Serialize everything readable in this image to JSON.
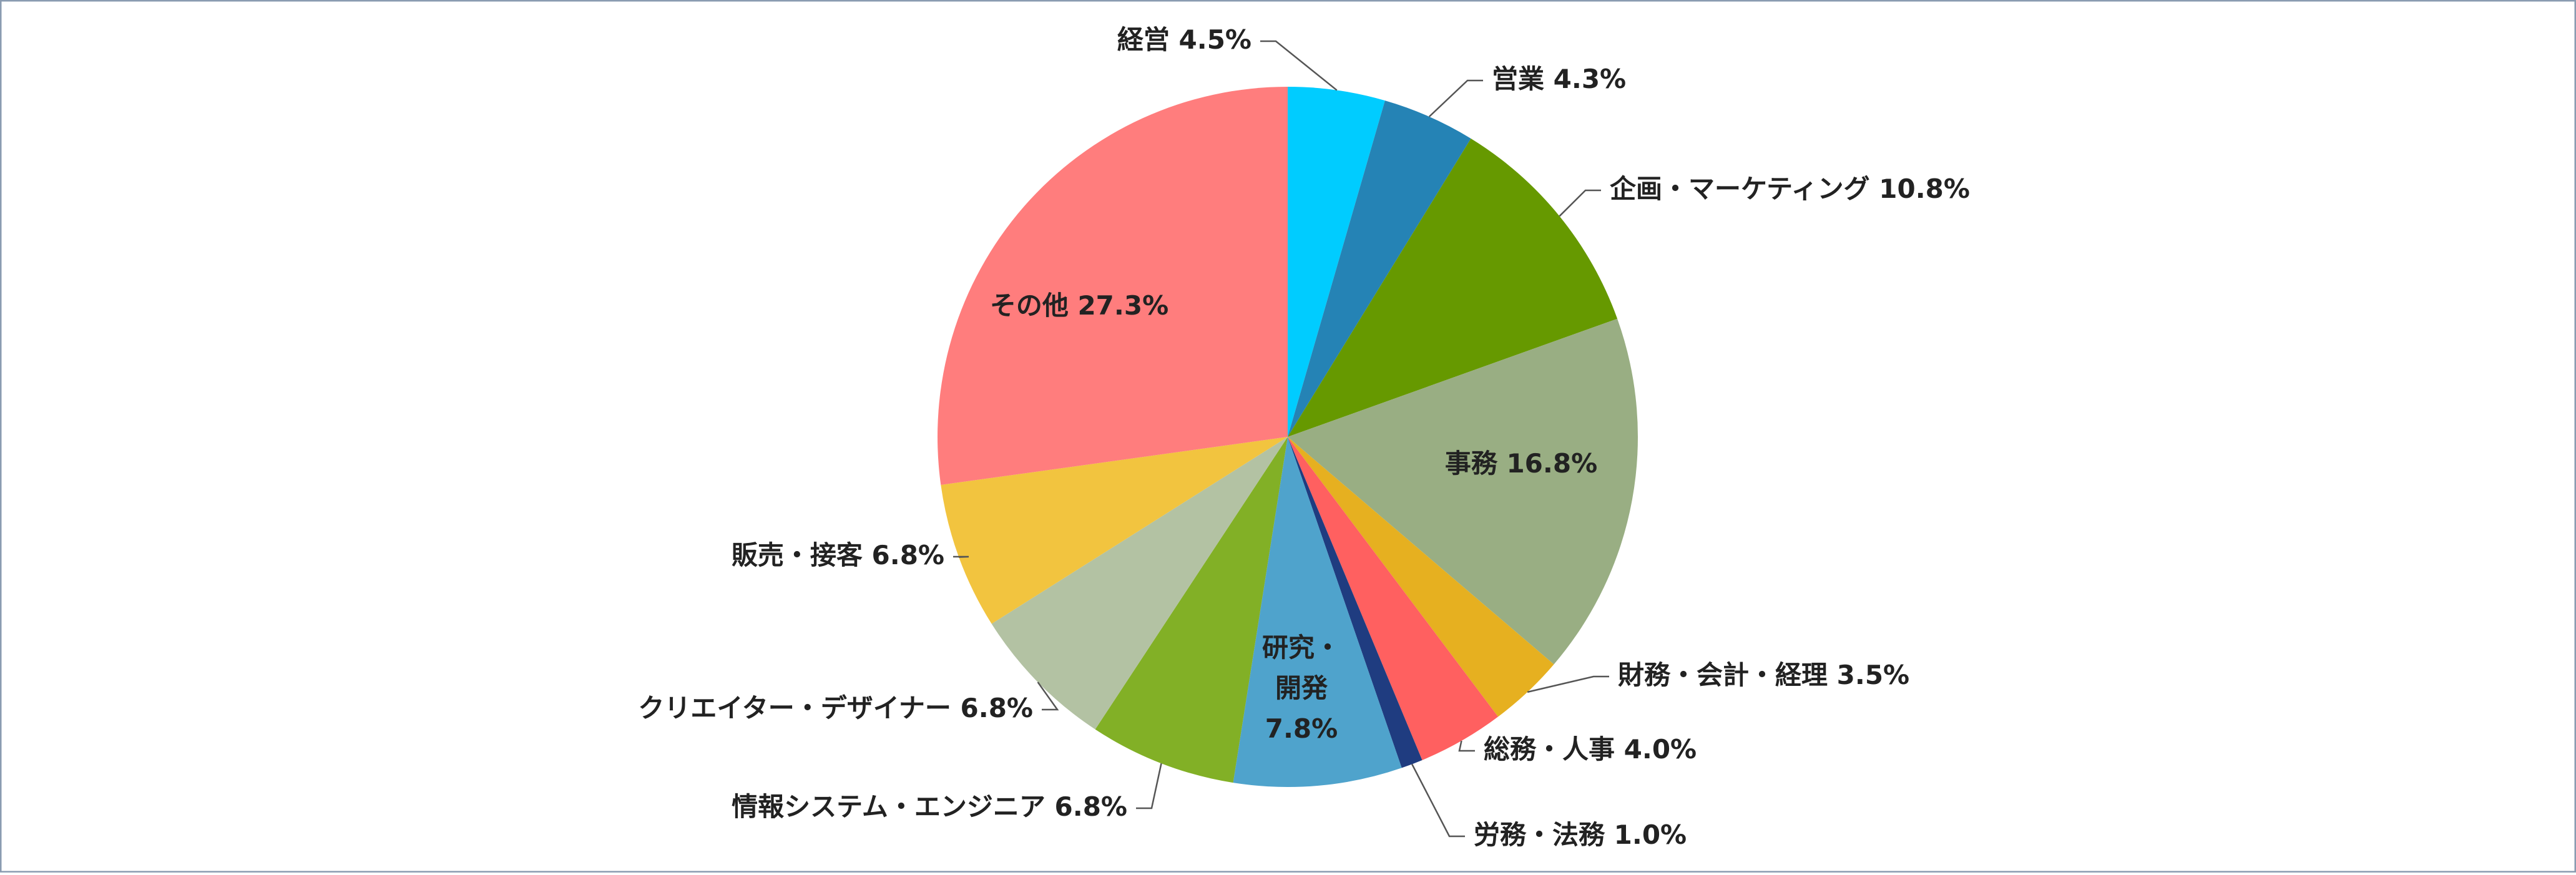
{
  "chart_data": {
    "type": "pie",
    "categories": [
      "経営",
      "営業",
      "企画・マーケティング",
      "事務",
      "財務・会計・経理",
      "総務・人事",
      "労務・法務",
      "研究・開発",
      "情報システム・エンジニア",
      "クリエイター・デザイナー",
      "販売・接客",
      "その他"
    ],
    "values": [
      4.5,
      4.3,
      10.8,
      16.8,
      3.5,
      4.0,
      1.0,
      7.8,
      6.8,
      6.8,
      6.8,
      27.3
    ],
    "value_labels": [
      "4.5%",
      "4.3%",
      "10.8%",
      "16.8%",
      "3.5%",
      "4.0%",
      "1.0%",
      "7.8%",
      "6.8%",
      "6.8%",
      "6.8%",
      "27.3%"
    ],
    "colors": [
      "#00ccff",
      "#2583b5",
      "#669900",
      "#99ae83",
      "#e6b020",
      "#ff6060",
      "#1f3c80",
      "#4fa3cc",
      "#82b026",
      "#b3c2a3",
      "#f2c43f",
      "#ff7d7d"
    ]
  }
}
